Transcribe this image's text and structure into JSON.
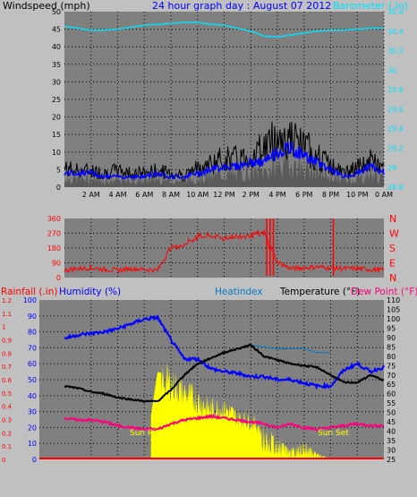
{
  "header": {
    "title": "24 hour graph day : August 07 2012",
    "windspeed_label": "Windspeed (mph)",
    "barometer_label": "Barometer (.in)"
  },
  "wind_dir_labels": [
    "N",
    "W",
    "S",
    "E",
    "N"
  ],
  "bottom_header": {
    "rainfall_label": "Rainfall (.in)",
    "humidity_label": "Humidity (%)",
    "heatindex_label": "Heatindex",
    "temperature_label": "Temperature (°F)",
    "dewpoint_label": "Dew Point (°F)"
  },
  "sun_labels": {
    "rise": "Sun Rise",
    "set": "Sun Set"
  },
  "colors": {
    "plot_bg": "#808080",
    "page_bg": "#c0c0c0",
    "wind": "#000000",
    "wind_avg": "#0000ff",
    "gust": "#5a5a5a",
    "barometer": "#00e0ff",
    "direction": "#ff0000",
    "humidity": "#0000ff",
    "temperature": "#000000",
    "dewpoint": "#ff0080",
    "heatindex": "#0078c8",
    "solar": "#ffff00",
    "rain": "#ff0000",
    "title": "#0000ff",
    "axis_red": "#ff0000"
  },
  "chart_data": [
    {
      "type": "line",
      "name": "wind-barometer",
      "x_ticks": [
        "2 AM",
        "4 AM",
        "6 AM",
        "8 AM",
        "10 AM",
        "12 PM",
        "2 PM",
        "4 PM",
        "6 PM",
        "8 PM",
        "10 PM",
        "0 AM"
      ],
      "y_left_ticks": [
        "0",
        "5",
        "10",
        "15",
        "20",
        "25",
        "30",
        "35",
        "40",
        "45",
        "50"
      ],
      "y_right_ticks": [
        "28.8",
        "29",
        "29.2",
        "29.4",
        "29.6",
        "29.8",
        "30",
        "30.2",
        "30.4",
        "30.6"
      ],
      "ylim_left": [
        0,
        50
      ],
      "ylim_right": [
        28.8,
        30.6
      ],
      "hours": [
        0,
        1,
        2,
        3,
        4,
        5,
        6,
        7,
        8,
        9,
        10,
        11,
        12,
        13,
        14,
        15,
        16,
        17,
        18,
        19,
        20,
        21,
        22,
        23,
        24
      ],
      "wind_max": [
        8,
        7,
        7,
        6,
        7,
        6,
        6,
        7,
        6,
        5,
        8,
        10,
        12,
        12,
        13,
        17,
        21,
        20,
        17,
        13,
        9,
        6,
        8,
        11,
        8
      ],
      "wind_avg": [
        4,
        4,
        4,
        3,
        3,
        3,
        3,
        4,
        3,
        3,
        4,
        5,
        6,
        6,
        7,
        7,
        10,
        11,
        9,
        7,
        5,
        3,
        4,
        6,
        4
      ],
      "barometer": [
        30.45,
        30.43,
        30.41,
        30.41,
        30.42,
        30.44,
        30.46,
        30.47,
        30.48,
        30.49,
        30.49,
        30.47,
        30.46,
        30.43,
        30.4,
        30.35,
        30.34,
        30.36,
        30.38,
        30.4,
        30.41,
        30.41,
        30.42,
        30.43,
        30.43
      ]
    },
    {
      "type": "line",
      "name": "wind-direction",
      "y_ticks": [
        "0",
        "90",
        "180",
        "270",
        "360"
      ],
      "ylim": [
        0,
        360
      ],
      "hours": [
        0,
        1,
        2,
        3,
        4,
        5,
        6,
        7,
        8,
        9,
        10,
        11,
        12,
        13,
        14,
        15,
        16,
        17,
        18,
        19,
        20,
        21,
        22,
        23,
        24
      ],
      "direction": [
        45,
        55,
        60,
        50,
        45,
        55,
        50,
        45,
        185,
        200,
        250,
        255,
        240,
        250,
        260,
        270,
        95,
        55,
        60,
        65,
        60,
        55,
        55,
        50,
        45
      ]
    },
    {
      "type": "line",
      "name": "temp-humidity",
      "y_rain_ticks": [
        "0",
        "0.1",
        "0.2",
        "0.3",
        "0.4",
        "0.5",
        "0.6",
        "0.7",
        "0.8",
        "0.9",
        "1",
        "1.1",
        "1.2"
      ],
      "y_humidity_ticks": [
        "0",
        "10",
        "20",
        "30",
        "40",
        "50",
        "60",
        "70",
        "80",
        "90",
        "100"
      ],
      "y_temp_ticks": [
        "25",
        "30",
        "35",
        "40",
        "45",
        "50",
        "55",
        "60",
        "65",
        "70",
        "75",
        "80",
        "85",
        "90",
        "95",
        "100",
        "105",
        "110"
      ],
      "ylim_humidity": [
        0,
        100
      ],
      "ylim_temp": [
        25,
        110
      ],
      "hours": [
        0,
        1,
        2,
        3,
        4,
        5,
        6,
        7,
        8,
        9,
        10,
        11,
        12,
        13,
        14,
        15,
        16,
        17,
        18,
        19,
        20,
        21,
        22,
        23,
        24
      ],
      "humidity": [
        76,
        78,
        79,
        80,
        82,
        85,
        88,
        89,
        75,
        63,
        63,
        57,
        55,
        54,
        52,
        52,
        50,
        50,
        48,
        46,
        46,
        56,
        60,
        55,
        58
      ],
      "temperature": [
        64,
        63,
        61,
        60,
        58,
        57,
        56,
        56,
        62,
        70,
        76,
        79,
        82,
        84,
        86,
        80,
        78,
        76,
        75,
        74,
        70,
        66,
        66,
        70,
        67
      ],
      "dewpoint": [
        47,
        46,
        46,
        45,
        43,
        42,
        41,
        41,
        44,
        46,
        47,
        48,
        47,
        46,
        45,
        44,
        42,
        44,
        42,
        41,
        42,
        43,
        44,
        43,
        43
      ],
      "heatindex": [
        null,
        null,
        null,
        null,
        null,
        null,
        null,
        null,
        null,
        null,
        null,
        null,
        82,
        84,
        86,
        85,
        84,
        84,
        84,
        82,
        null,
        null,
        null,
        null,
        null
      ],
      "solar_pct": [
        0,
        0,
        0,
        0,
        0,
        0,
        0,
        55,
        52,
        45,
        40,
        34,
        35,
        28,
        26,
        20,
        12,
        6,
        10,
        4,
        0,
        0,
        0,
        0,
        0
      ],
      "rain": [
        0,
        0,
        0,
        0,
        0,
        0,
        0,
        0,
        0,
        0,
        0,
        0,
        0,
        0,
        0,
        0,
        0,
        0,
        0,
        0,
        0,
        0,
        0,
        0,
        0
      ]
    }
  ]
}
